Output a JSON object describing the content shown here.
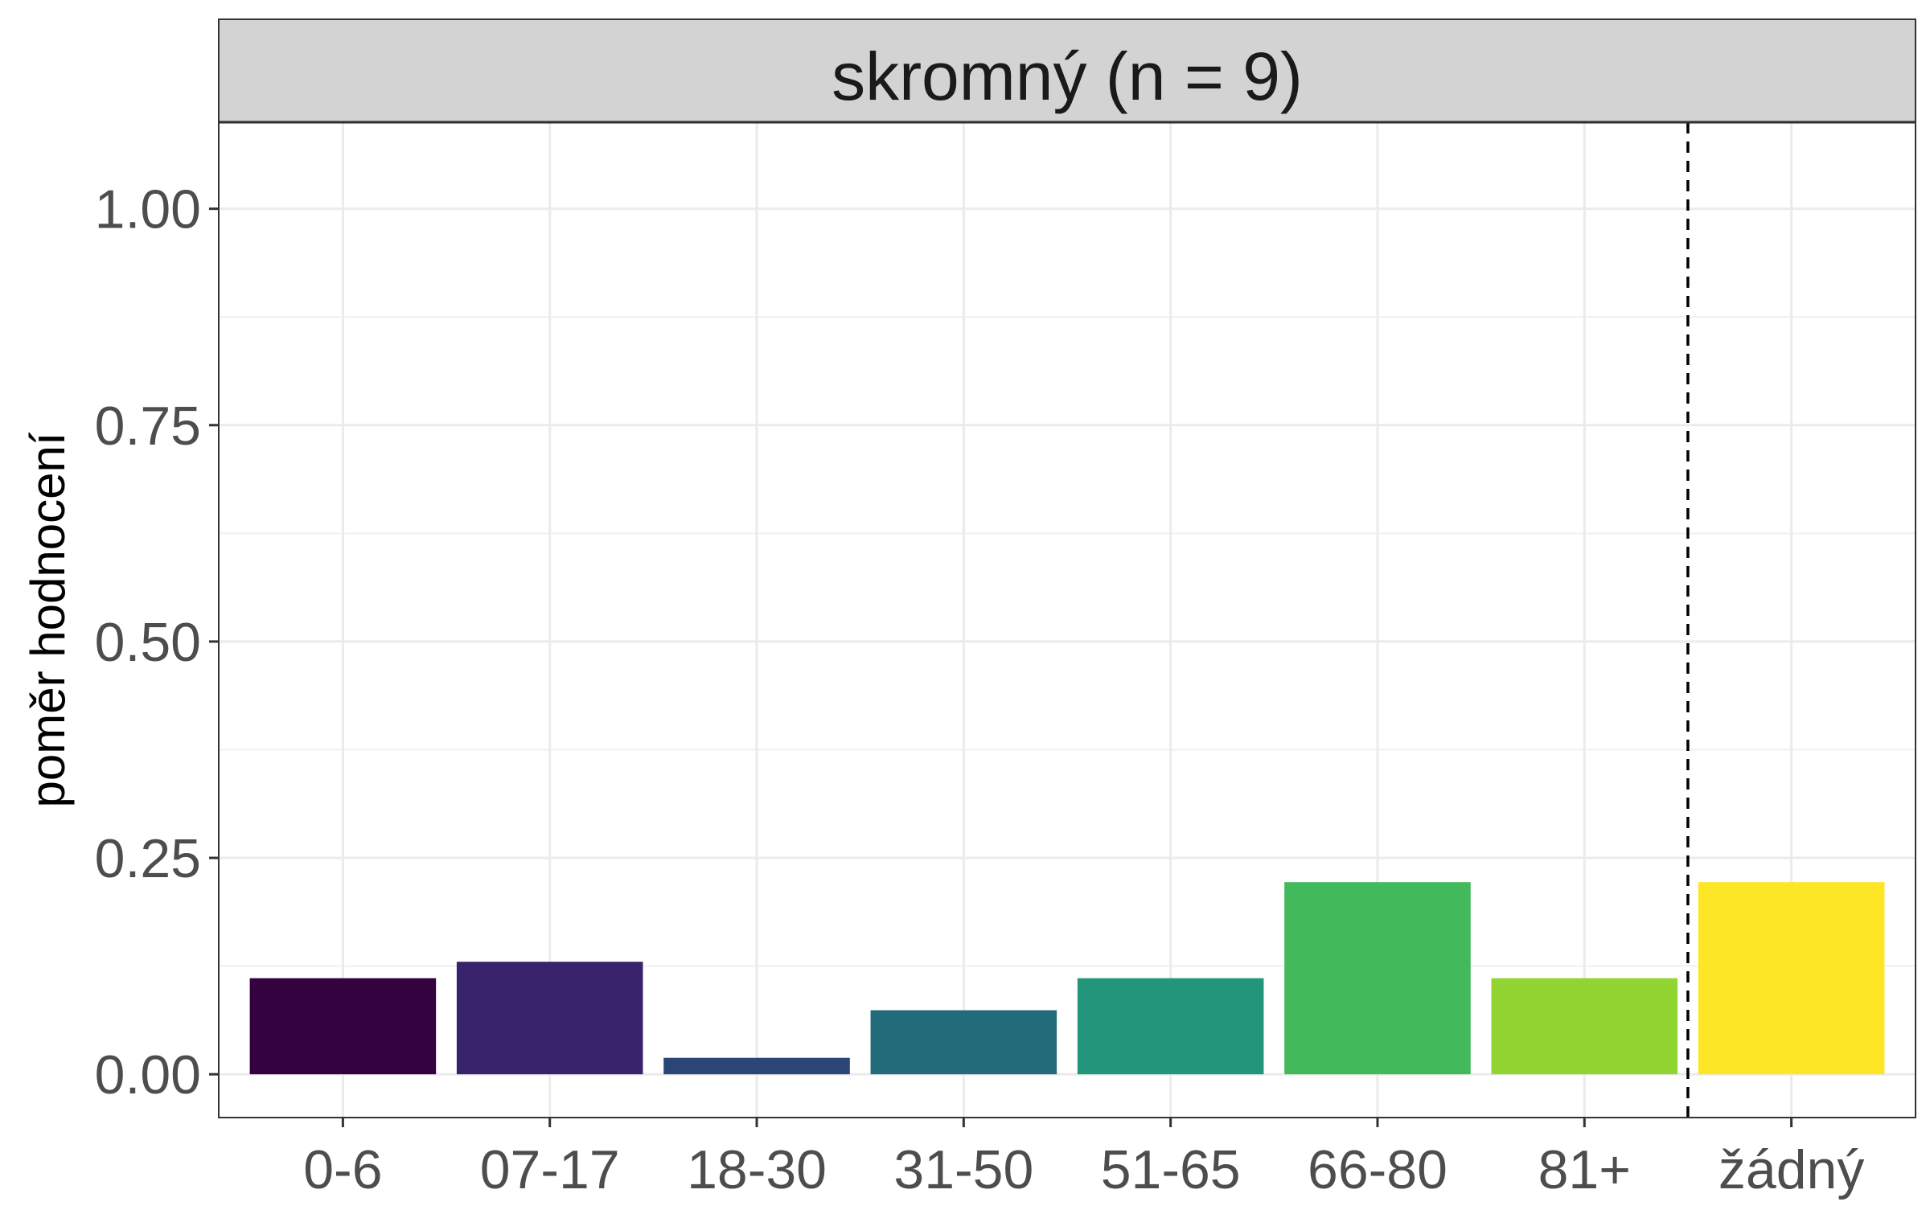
{
  "chart_data": {
    "type": "bar",
    "facet_title": "skromný (n = 9)",
    "ylabel": "poměr hodnocení",
    "xlabel": "",
    "ylim": [
      -0.05,
      1.1
    ],
    "y_ticks": [
      "0.00",
      "0.25",
      "0.50",
      "0.75",
      "1.00"
    ],
    "categories": [
      "0-6",
      "07-17",
      "18-30",
      "31-50",
      "51-65",
      "66-80",
      "81+",
      "žádný"
    ],
    "values": [
      0.111,
      0.13,
      0.019,
      0.074,
      0.111,
      0.222,
      0.111,
      0.222
    ],
    "colors": [
      "#350240",
      "#37226b",
      "#2a4677",
      "#216b7b",
      "#22957a",
      "#42b95a",
      "#92d431",
      "#fde625"
    ],
    "separator": {
      "between": [
        "81+",
        "žádný"
      ],
      "style": "dashed"
    },
    "grid": true,
    "legend": "none"
  }
}
